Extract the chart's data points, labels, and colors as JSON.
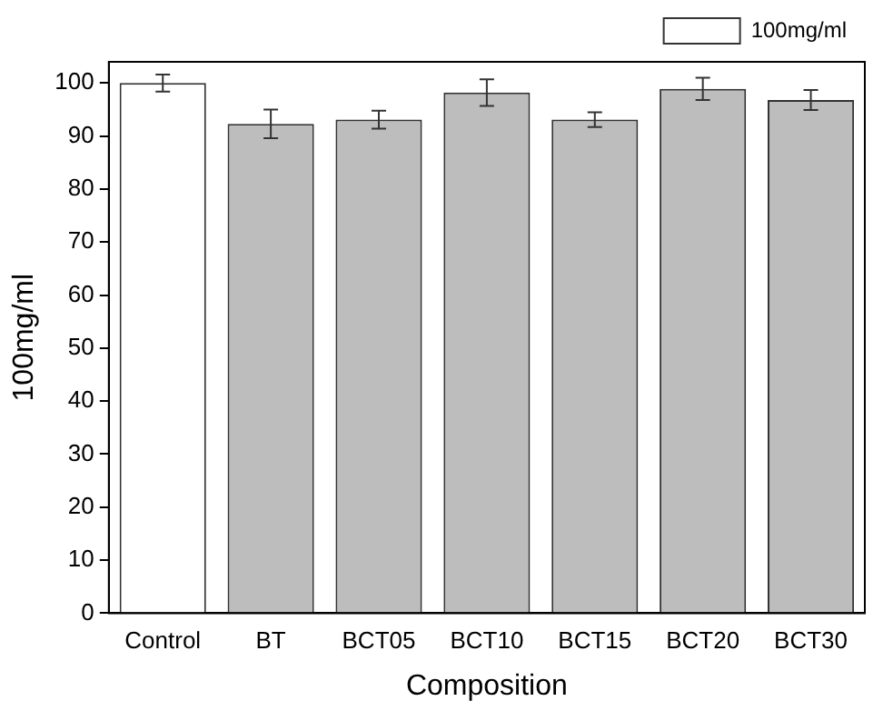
{
  "chart_data": {
    "type": "bar",
    "xlabel": "Composition",
    "ylabel": "100mg/ml",
    "categories": [
      "Control",
      "BT",
      "BCT05",
      "BCT10",
      "BCT15",
      "BCT20",
      "BCT30"
    ],
    "series": [
      {
        "name": "100mg/ml",
        "color": "#ffffff",
        "colors": [
          "#ffffff",
          "#bdbdbd",
          "#bdbdbd",
          "#bdbdbd",
          "#bdbdbd",
          "#bdbdbd",
          "#bdbdbd"
        ],
        "values": [
          100,
          92.3,
          93.1,
          98.2,
          93.1,
          98.9,
          96.8
        ],
        "errors": [
          1.6,
          2.7,
          1.7,
          2.5,
          1.4,
          2.1,
          1.9
        ]
      }
    ],
    "ylim": [
      0,
      104
    ],
    "yticks": [
      0,
      10,
      20,
      30,
      40,
      50,
      60,
      70,
      80,
      90,
      100
    ],
    "grid": false,
    "legend": "top right"
  }
}
